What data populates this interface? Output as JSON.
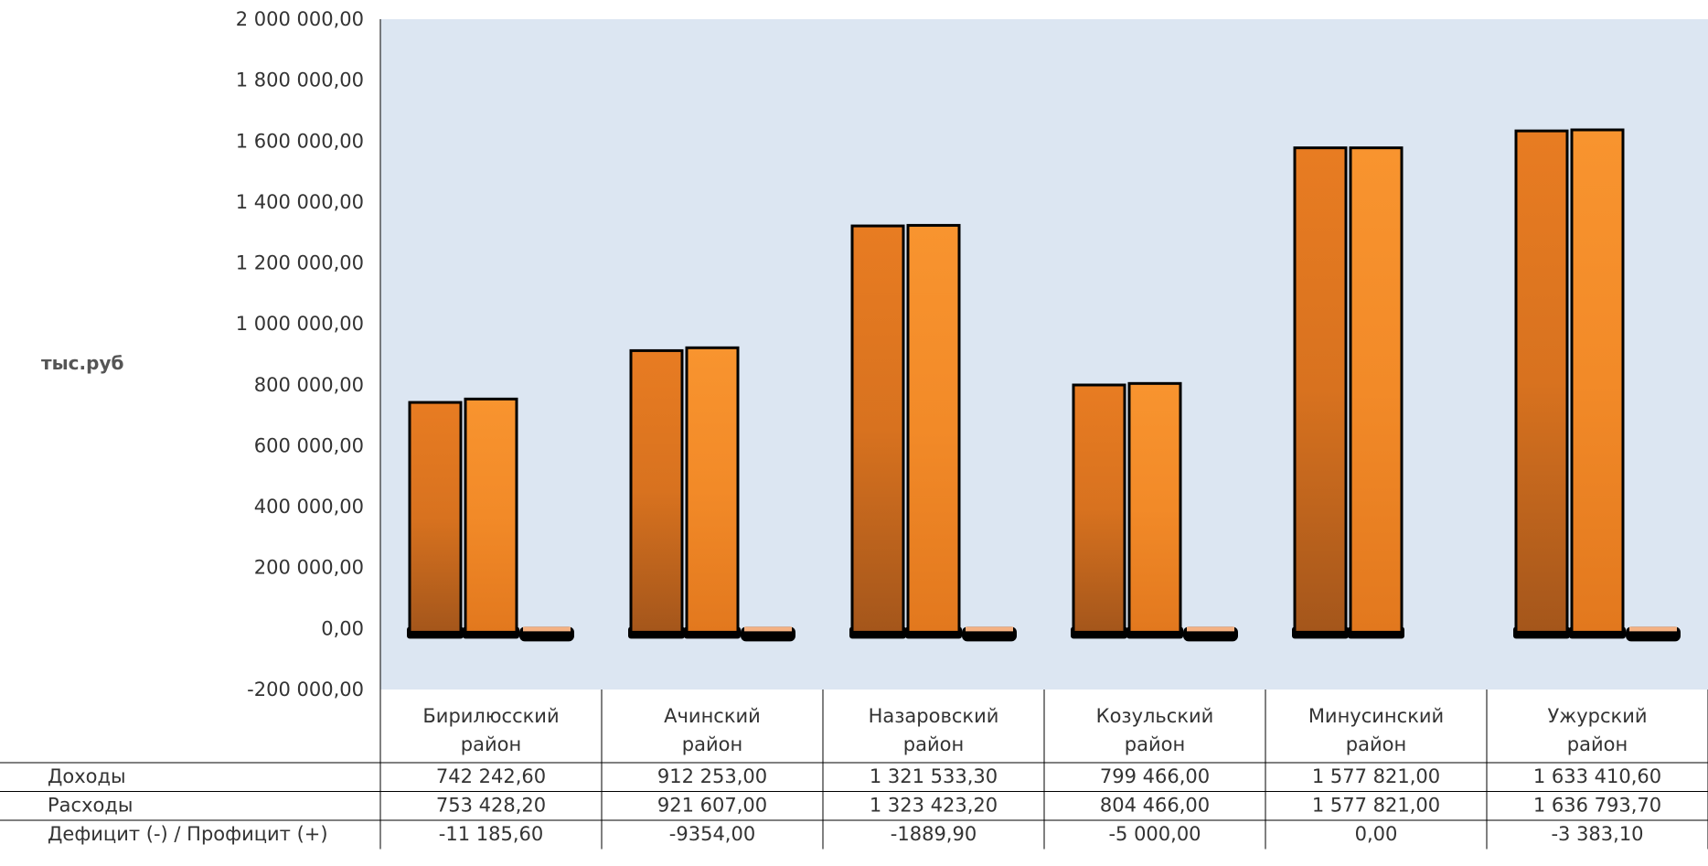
{
  "chart_data": {
    "type": "bar",
    "ylabel": "тыс.руб",
    "ylim": [
      -200000,
      2000000
    ],
    "y_ticks": [
      "2 000 000,00",
      "1 800 000,00",
      "1 600 000,00",
      "1 400 000,00",
      "1 200 000,00",
      "1 000 000,00",
      "800 000,00",
      "600 000,00",
      "400 000,00",
      "200 000,00",
      "0,00",
      "-200 000,00"
    ],
    "categories": [
      [
        "Бирилюсский",
        "район"
      ],
      [
        "Ачинский",
        "район"
      ],
      [
        "Назаровский",
        "район"
      ],
      [
        "Козульский",
        "район"
      ],
      [
        "Минусинский",
        "район"
      ],
      [
        "Ужурский",
        "район"
      ]
    ],
    "grid": false,
    "legend": "data table",
    "series": [
      {
        "name": "Доходы",
        "values": [
          742242.6,
          912253.0,
          1321533.3,
          799466.0,
          1577821.0,
          1633410.6
        ],
        "labels": [
          "742 242,60",
          "912 253,00",
          "1 321 533,30",
          "799 466,00",
          "1 577 821,00",
          "1 633 410,60"
        ]
      },
      {
        "name": "Расходы",
        "values": [
          753428.2,
          921607.0,
          1323423.2,
          804466.0,
          1577821.0,
          1636793.7
        ],
        "labels": [
          "753 428,20",
          "921 607,00",
          "1 323 423,20",
          "804 466,00",
          "1 577 821,00",
          "1 636 793,70"
        ]
      },
      {
        "name": "Дефицит (-) / Профицит (+)",
        "values": [
          -11185.6,
          -9354.0,
          -1889.9,
          -5000.0,
          0.0,
          -3383.1
        ],
        "labels": [
          "-11 185,60",
          "-9354,00",
          "-1889,90",
          "-5 000,00",
          "0,00",
          "-3 383,10"
        ]
      }
    ],
    "colors": {
      "plot_bg": "#dce6f2",
      "bar_dark": "#a85d1a",
      "bar_light": "#f7962f",
      "deficit": "#f4b183",
      "outline": "#000000"
    }
  }
}
